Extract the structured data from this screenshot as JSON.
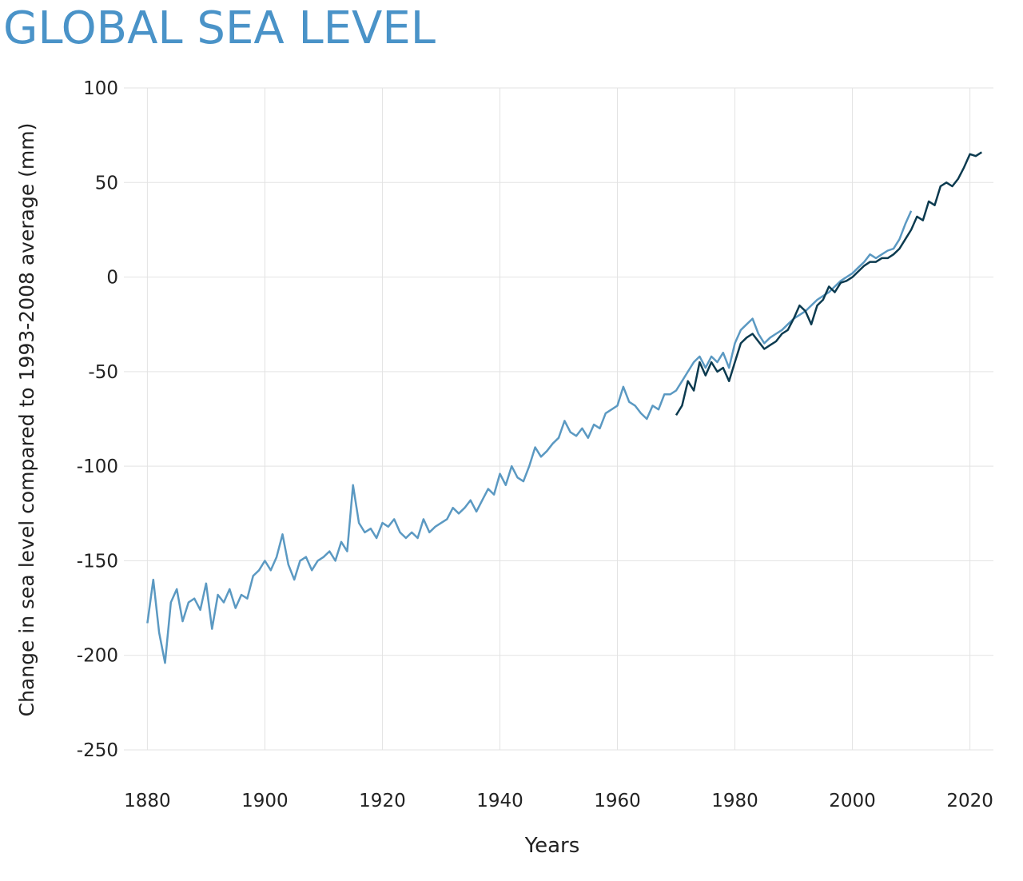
{
  "chart_data": {
    "type": "line",
    "title": "GLOBAL SEA LEVEL",
    "x_label": "Years",
    "y_label": "Change in sea level compared to 1993-2008 average (mm)",
    "xlim": [
      1876,
      2024
    ],
    "ylim": [
      -250,
      100
    ],
    "xticks": [
      1880,
      1900,
      1920,
      1940,
      1960,
      1980,
      2000,
      2020
    ],
    "yticks": [
      -250,
      -200,
      -150,
      -100,
      -50,
      0,
      50,
      100
    ],
    "grid": true,
    "series": [
      {
        "color": "#5b99c2",
        "x": [
          1880,
          1881,
          1882,
          1883,
          1884,
          1885,
          1886,
          1887,
          1888,
          1889,
          1890,
          1891,
          1892,
          1893,
          1894,
          1895,
          1896,
          1897,
          1898,
          1899,
          1900,
          1901,
          1902,
          1903,
          1904,
          1905,
          1906,
          1907,
          1908,
          1909,
          1910,
          1911,
          1912,
          1913,
          1914,
          1915,
          1916,
          1917,
          1918,
          1919,
          1920,
          1921,
          1922,
          1923,
          1924,
          1925,
          1926,
          1927,
          1928,
          1929,
          1930,
          1931,
          1932,
          1933,
          1934,
          1935,
          1936,
          1937,
          1938,
          1939,
          1940,
          1941,
          1942,
          1943,
          1944,
          1945,
          1946,
          1947,
          1948,
          1949,
          1950,
          1951,
          1952,
          1953,
          1954,
          1955,
          1956,
          1957,
          1958,
          1959,
          1960,
          1961,
          1962,
          1963,
          1964,
          1965,
          1966,
          1967,
          1968,
          1969,
          1970,
          1971,
          1972,
          1973,
          1974,
          1975,
          1976,
          1977,
          1978,
          1979,
          1980,
          1981,
          1982,
          1983,
          1984,
          1985,
          1986,
          1987,
          1988,
          1989,
          1990,
          1991,
          1992,
          1993,
          1994,
          1995,
          1996,
          1997,
          1998,
          1999,
          2000,
          2001,
          2002,
          2003,
          2004,
          2005,
          2006,
          2007,
          2008,
          2009,
          2010
        ],
        "values": [
          -183,
          -160,
          -188,
          -204,
          -172,
          -165,
          -182,
          -172,
          -170,
          -176,
          -162,
          -186,
          -168,
          -172,
          -165,
          -175,
          -168,
          -170,
          -158,
          -155,
          -150,
          -155,
          -148,
          -136,
          -152,
          -160,
          -150,
          -148,
          -155,
          -150,
          -148,
          -145,
          -150,
          -140,
          -145,
          -110,
          -130,
          -135,
          -133,
          -138,
          -130,
          -132,
          -128,
          -135,
          -138,
          -135,
          -138,
          -128,
          -135,
          -132,
          -130,
          -128,
          -122,
          -125,
          -122,
          -118,
          -124,
          -118,
          -112,
          -115,
          -104,
          -110,
          -100,
          -106,
          -108,
          -100,
          -90,
          -95,
          -92,
          -88,
          -85,
          -76,
          -82,
          -84,
          -80,
          -85,
          -78,
          -80,
          -72,
          -70,
          -68,
          -58,
          -66,
          -68,
          -72,
          -75,
          -68,
          -70,
          -62,
          -62,
          -60,
          -55,
          -50,
          -45,
          -42,
          -48,
          -42,
          -45,
          -40,
          -48,
          -35,
          -28,
          -25,
          -22,
          -30,
          -35,
          -32,
          -30,
          -28,
          -25,
          -22,
          -20,
          -18,
          -15,
          -12,
          -10,
          -8,
          -5,
          -2,
          0,
          2,
          5,
          8,
          12,
          10,
          12,
          14,
          15,
          20,
          28,
          35
        ]
      },
      {
        "color": "#0b3a4f",
        "x": [
          1970,
          1971,
          1972,
          1973,
          1974,
          1975,
          1976,
          1977,
          1978,
          1979,
          1980,
          1981,
          1982,
          1983,
          1984,
          1985,
          1986,
          1987,
          1988,
          1989,
          1990,
          1991,
          1992,
          1993,
          1994,
          1995,
          1996,
          1997,
          1998,
          1999,
          2000,
          2001,
          2002,
          2003,
          2004,
          2005,
          2006,
          2007,
          2008,
          2009,
          2010,
          2011,
          2012,
          2013,
          2014,
          2015,
          2016,
          2017,
          2018,
          2019,
          2020,
          2021,
          2022
        ],
        "values": [
          -73,
          -68,
          -55,
          -60,
          -45,
          -52,
          -45,
          -50,
          -48,
          -55,
          -45,
          -35,
          -32,
          -30,
          -34,
          -38,
          -36,
          -34,
          -30,
          -28,
          -22,
          -15,
          -18,
          -25,
          -15,
          -12,
          -5,
          -8,
          -3,
          -2,
          0,
          3,
          6,
          8,
          8,
          10,
          10,
          12,
          15,
          20,
          25,
          32,
          30,
          40,
          38,
          48,
          50,
          48,
          52,
          58,
          65,
          64,
          66
        ]
      }
    ]
  }
}
